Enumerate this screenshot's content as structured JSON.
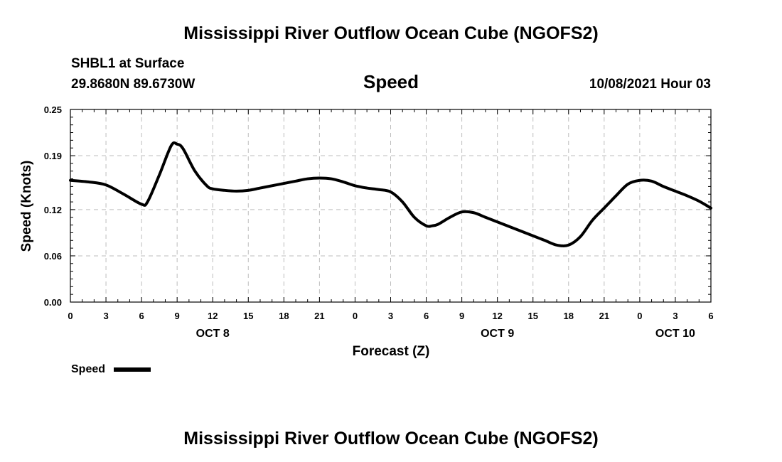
{
  "header": {
    "title_top": "Mississippi River Outflow Ocean Cube (NGOFS2)",
    "station": "SHBL1 at Surface",
    "coords": "29.8680N  89.6730W",
    "variable": "Speed",
    "datetime": "10/08/2021 Hour 03"
  },
  "footer": {
    "title_bottom": "Mississippi River Outflow Ocean Cube (NGOFS2)"
  },
  "legend": {
    "label": "Speed"
  },
  "chart_data": {
    "type": "line",
    "title": "Speed",
    "xlabel": "Forecast (Z)",
    "ylabel": "Speed (Knots)",
    "xlim": [
      0,
      54
    ],
    "ylim": [
      0,
      0.25
    ],
    "x_ticks": [
      0,
      3,
      6,
      9,
      12,
      15,
      18,
      21,
      24,
      27,
      30,
      33,
      36,
      39,
      42,
      45,
      48,
      51,
      54
    ],
    "x_tick_labels": [
      "0",
      "3",
      "6",
      "9",
      "12",
      "15",
      "18",
      "21",
      "0",
      "3",
      "6",
      "9",
      "12",
      "15",
      "18",
      "21",
      "0",
      "3",
      "6"
    ],
    "y_ticks": [
      0.0,
      0.06,
      0.12,
      0.19,
      0.25
    ],
    "y_tick_labels": [
      "0.00",
      "0.06",
      "0.12",
      "0.19",
      "0.25"
    ],
    "day_labels": [
      {
        "x": 12,
        "label": "OCT 8"
      },
      {
        "x": 36,
        "label": "OCT 9"
      },
      {
        "x": 51,
        "label": "OCT 10"
      }
    ],
    "grid": true,
    "legend_position": "bottom-left",
    "series": [
      {
        "name": "Speed",
        "x": [
          0,
          1.5,
          3,
          4.5,
          6,
          6.5,
          7.5,
          8.5,
          9,
          9.5,
          10.5,
          11.5,
          12,
          13,
          14,
          15,
          16,
          17,
          18,
          19,
          20,
          21,
          22,
          23,
          24,
          25,
          26,
          27,
          28,
          29,
          30,
          30.5,
          31,
          32,
          33,
          34,
          35,
          36,
          37,
          38,
          39,
          40,
          41,
          42,
          43,
          44,
          45,
          45.5,
          46,
          47,
          48,
          49,
          50,
          51,
          52,
          53,
          54
        ],
        "values": [
          0.158,
          0.156,
          0.152,
          0.14,
          0.127,
          0.13,
          0.165,
          0.203,
          0.205,
          0.199,
          0.17,
          0.151,
          0.147,
          0.145,
          0.144,
          0.145,
          0.148,
          0.151,
          0.154,
          0.157,
          0.16,
          0.161,
          0.16,
          0.156,
          0.151,
          0.148,
          0.146,
          0.143,
          0.13,
          0.11,
          0.099,
          0.099,
          0.101,
          0.11,
          0.117,
          0.116,
          0.11,
          0.104,
          0.098,
          0.092,
          0.086,
          0.08,
          0.074,
          0.074,
          0.085,
          0.106,
          0.122,
          0.13,
          0.138,
          0.153,
          0.158,
          0.157,
          0.15,
          0.144,
          0.138,
          0.131,
          0.122
        ]
      }
    ]
  }
}
